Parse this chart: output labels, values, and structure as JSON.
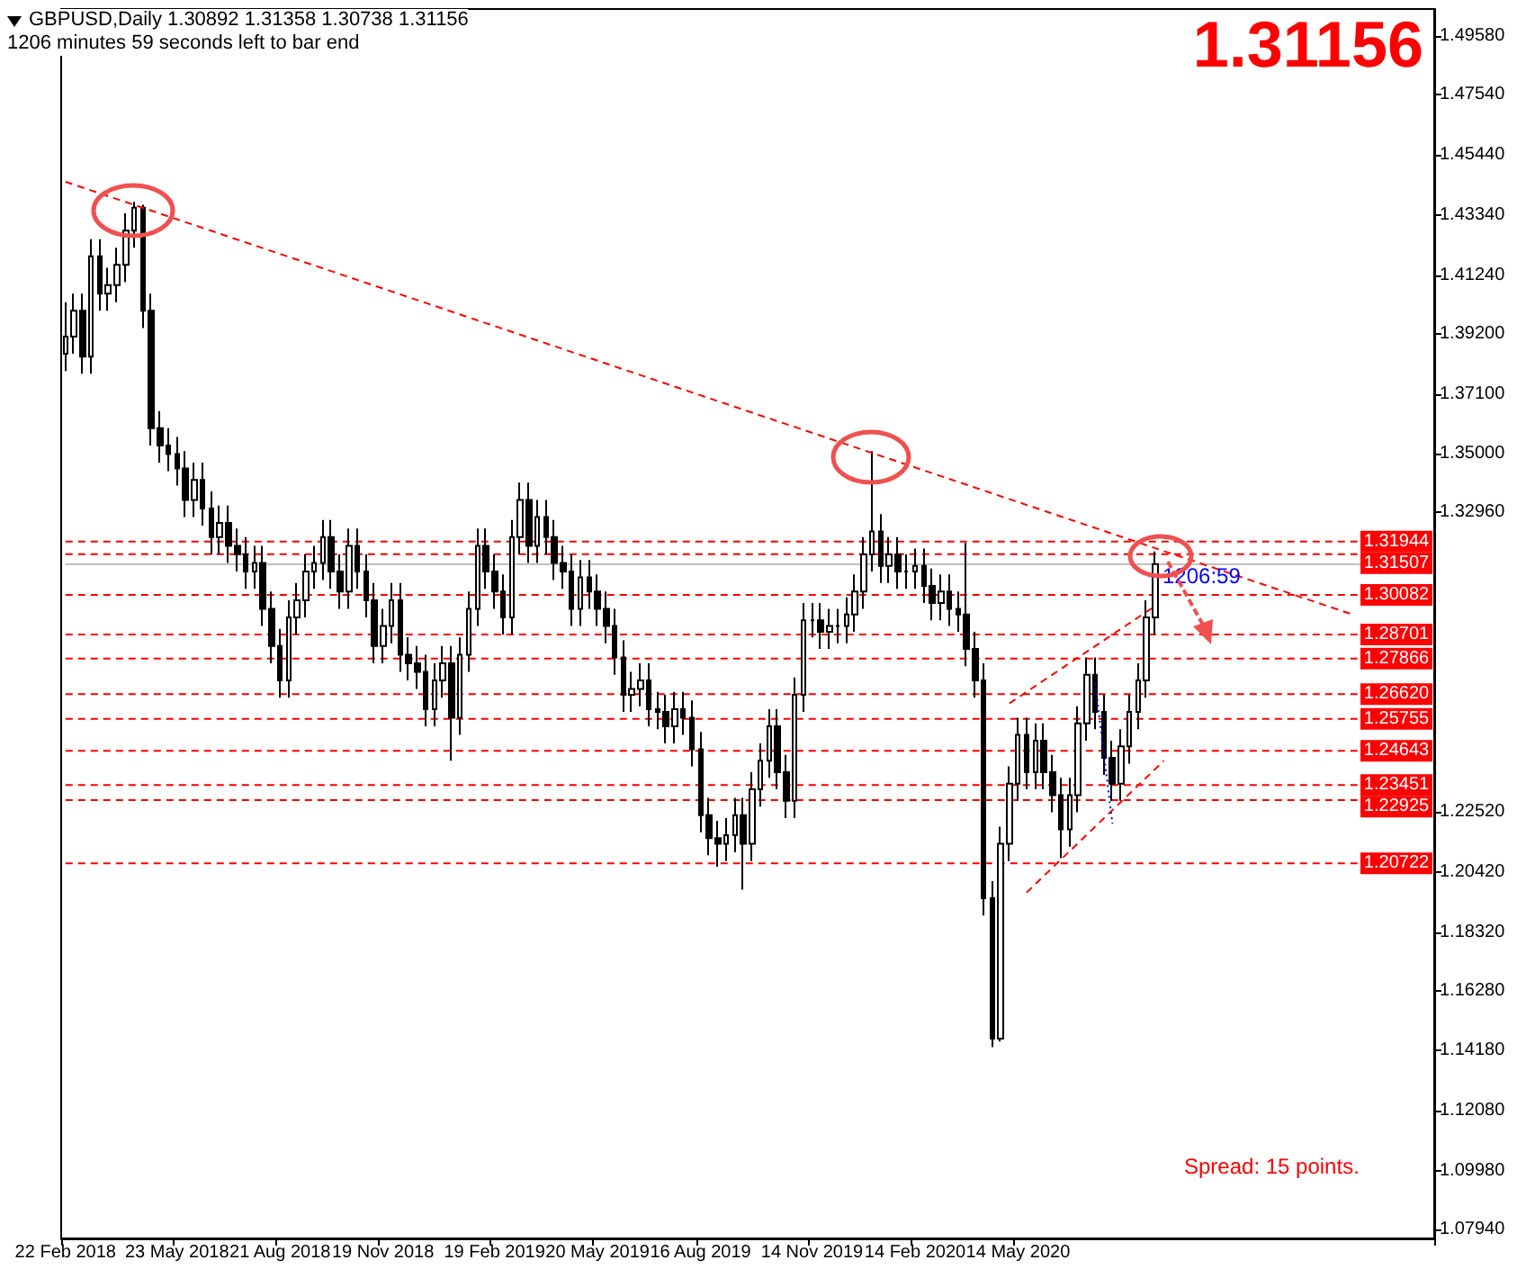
{
  "chart_data": {
    "type": "candlestick",
    "title": "GBPUSD,Daily  1.30892 1.31358 1.30738 1.31156",
    "subtitle": "1206 minutes 59 seconds left to bar end",
    "annotations": [
      "1.31156",
      "Spread: 15 points.",
      "1206:59"
    ],
    "categories": [
      "22 Feb 2018",
      null,
      null,
      null,
      null,
      null,
      null,
      null,
      null,
      null,
      null,
      null,
      null,
      "23 May 2018",
      null,
      null,
      null,
      null,
      null,
      null,
      null,
      null,
      null,
      null,
      null,
      "21 Aug 2018",
      null,
      null,
      null,
      null,
      null,
      null,
      null,
      null,
      null,
      null,
      null,
      "19 Nov 2018",
      null,
      null,
      null,
      null,
      null,
      null,
      null,
      null,
      null,
      null,
      null,
      null,
      "19 Feb 2019",
      null,
      null,
      null,
      null,
      null,
      null,
      null,
      null,
      null,
      null,
      null,
      "20 May 2019",
      null,
      null,
      null,
      null,
      null,
      null,
      null,
      null,
      null,
      null,
      null,
      "16 Aug 2019",
      null,
      null,
      null,
      null,
      null,
      null,
      null,
      null,
      null,
      null,
      null,
      null,
      "14 Nov 2019",
      null,
      null,
      null,
      null,
      null,
      null,
      null,
      null,
      null,
      null,
      null,
      "14 Feb 2020",
      null,
      null,
      null,
      null,
      null,
      null,
      null,
      null,
      null,
      null,
      null,
      "14 May 2020",
      null,
      null,
      null,
      null,
      null,
      null,
      null,
      null,
      null,
      null,
      null,
      null,
      null,
      null,
      null,
      null,
      null,
      null,
      null,
      null,
      null,
      null,
      null,
      null,
      null,
      null,
      null,
      null,
      null,
      null,
      null,
      null,
      null,
      null,
      null,
      null,
      null,
      null,
      null,
      null,
      null,
      null,
      null,
      null,
      null,
      null,
      null,
      null
    ],
    "color": "#000000",
    "ohlc": [
      [
        1.385,
        1.403,
        1.379,
        1.391
      ],
      [
        1.391,
        1.406,
        1.385,
        1.4
      ],
      [
        1.4,
        1.406,
        1.378,
        1.384
      ],
      [
        1.384,
        1.425,
        1.378,
        1.419
      ],
      [
        1.419,
        1.425,
        1.4,
        1.406
      ],
      [
        1.406,
        1.415,
        1.4,
        1.409
      ],
      [
        1.409,
        1.422,
        1.403,
        1.416
      ],
      [
        1.416,
        1.434,
        1.41,
        1.428
      ],
      [
        1.428,
        1.438,
        1.422,
        1.436
      ],
      [
        1.436,
        1.437,
        1.394,
        1.4
      ],
      [
        1.4,
        1.406,
        1.353,
        1.359
      ],
      [
        1.359,
        1.365,
        1.347,
        1.353
      ],
      [
        1.353,
        1.359,
        1.344,
        1.35
      ],
      [
        1.35,
        1.356,
        1.339,
        1.345
      ],
      [
        1.345,
        1.351,
        1.328,
        1.334
      ],
      [
        1.334,
        1.347,
        1.328,
        1.341
      ],
      [
        1.341,
        1.347,
        1.325,
        1.331
      ],
      [
        1.331,
        1.337,
        1.315,
        1.321
      ],
      [
        1.321,
        1.332,
        1.315,
        1.326
      ],
      [
        1.326,
        1.332,
        1.312,
        1.318
      ],
      [
        1.318,
        1.324,
        1.309,
        1.315
      ],
      [
        1.315,
        1.321,
        1.303,
        1.309
      ],
      [
        1.309,
        1.318,
        1.303,
        1.312
      ],
      [
        1.312,
        1.318,
        1.29,
        1.296
      ],
      [
        1.296,
        1.302,
        1.277,
        1.283
      ],
      [
        1.283,
        1.289,
        1.265,
        1.271
      ],
      [
        1.271,
        1.299,
        1.265,
        1.293
      ],
      [
        1.293,
        1.305,
        1.287,
        1.299
      ],
      [
        1.299,
        1.315,
        1.293,
        1.309
      ],
      [
        1.309,
        1.318,
        1.303,
        1.312
      ],
      [
        1.312,
        1.327,
        1.306,
        1.321
      ],
      [
        1.321,
        1.327,
        1.303,
        1.309
      ],
      [
        1.309,
        1.315,
        1.296,
        1.302
      ],
      [
        1.302,
        1.324,
        1.296,
        1.318
      ],
      [
        1.318,
        1.324,
        1.303,
        1.309
      ],
      [
        1.309,
        1.315,
        1.293,
        1.299
      ],
      [
        1.299,
        1.305,
        1.277,
        1.283
      ],
      [
        1.283,
        1.296,
        1.277,
        1.29
      ],
      [
        1.29,
        1.305,
        1.284,
        1.299
      ],
      [
        1.299,
        1.305,
        1.274,
        1.28
      ],
      [
        1.28,
        1.286,
        1.271,
        1.277
      ],
      [
        1.277,
        1.283,
        1.268,
        1.274
      ],
      [
        1.274,
        1.28,
        1.255,
        1.261
      ],
      [
        1.261,
        1.277,
        1.255,
        1.271
      ],
      [
        1.271,
        1.283,
        1.265,
        1.277
      ],
      [
        1.277,
        1.283,
        1.243,
        1.258
      ],
      [
        1.258,
        1.286,
        1.252,
        1.28
      ],
      [
        1.28,
        1.302,
        1.274,
        1.296
      ],
      [
        1.296,
        1.324,
        1.29,
        1.318
      ],
      [
        1.318,
        1.324,
        1.303,
        1.309
      ],
      [
        1.309,
        1.315,
        1.296,
        1.302
      ],
      [
        1.302,
        1.308,
        1.287,
        1.293
      ],
      [
        1.293,
        1.327,
        1.287,
        1.321
      ],
      [
        1.321,
        1.34,
        1.315,
        1.334
      ],
      [
        1.334,
        1.34,
        1.312,
        1.318
      ],
      [
        1.318,
        1.334,
        1.312,
        1.328
      ],
      [
        1.328,
        1.334,
        1.315,
        1.321
      ],
      [
        1.321,
        1.327,
        1.306,
        1.312
      ],
      [
        1.312,
        1.318,
        1.303,
        1.309
      ],
      [
        1.309,
        1.315,
        1.29,
        1.296
      ],
      [
        1.296,
        1.313,
        1.29,
        1.307
      ],
      [
        1.307,
        1.313,
        1.296,
        1.302
      ],
      [
        1.302,
        1.308,
        1.29,
        1.296
      ],
      [
        1.296,
        1.302,
        1.284,
        1.29
      ],
      [
        1.29,
        1.296,
        1.273,
        1.279
      ],
      [
        1.279,
        1.285,
        1.26,
        1.266
      ],
      [
        1.266,
        1.274,
        1.26,
        1.268
      ],
      [
        1.268,
        1.277,
        1.262,
        1.271
      ],
      [
        1.271,
        1.277,
        1.255,
        1.261
      ],
      [
        1.261,
        1.267,
        1.254,
        1.26
      ],
      [
        1.26,
        1.266,
        1.249,
        1.255
      ],
      [
        1.255,
        1.267,
        1.249,
        1.261
      ],
      [
        1.261,
        1.267,
        1.252,
        1.258
      ],
      [
        1.258,
        1.264,
        1.241,
        1.247
      ],
      [
        1.247,
        1.253,
        1.218,
        1.224
      ],
      [
        1.224,
        1.23,
        1.21,
        1.216
      ],
      [
        1.216,
        1.222,
        1.206,
        1.214
      ],
      [
        1.214,
        1.223,
        1.208,
        1.217
      ],
      [
        1.217,
        1.23,
        1.211,
        1.224
      ],
      [
        1.224,
        1.23,
        1.198,
        1.214
      ],
      [
        1.214,
        1.239,
        1.208,
        1.233
      ],
      [
        1.233,
        1.249,
        1.227,
        1.243
      ],
      [
        1.243,
        1.261,
        1.237,
        1.255
      ],
      [
        1.255,
        1.261,
        1.233,
        1.239
      ],
      [
        1.239,
        1.245,
        1.223,
        1.229
      ],
      [
        1.229,
        1.272,
        1.223,
        1.266
      ],
      [
        1.266,
        1.298,
        1.26,
        1.292
      ],
      [
        1.292,
        1.298,
        1.286,
        1.292
      ],
      [
        1.292,
        1.298,
        1.282,
        1.288
      ],
      [
        1.288,
        1.296,
        1.282,
        1.29
      ],
      [
        1.29,
        1.296,
        1.284,
        1.29
      ],
      [
        1.29,
        1.3,
        1.284,
        1.294
      ],
      [
        1.294,
        1.308,
        1.288,
        1.302
      ],
      [
        1.302,
        1.321,
        1.296,
        1.315
      ],
      [
        1.315,
        1.351,
        1.309,
        1.323
      ],
      [
        1.323,
        1.329,
        1.305,
        1.311
      ],
      [
        1.311,
        1.321,
        1.305,
        1.315
      ],
      [
        1.315,
        1.321,
        1.303,
        1.309
      ],
      [
        1.309,
        1.315,
        1.303,
        1.309
      ],
      [
        1.309,
        1.317,
        1.303,
        1.311
      ],
      [
        1.311,
        1.317,
        1.298,
        1.304
      ],
      [
        1.304,
        1.31,
        1.292,
        1.298
      ],
      [
        1.298,
        1.308,
        1.292,
        1.302
      ],
      [
        1.302,
        1.308,
        1.29,
        1.296
      ],
      [
        1.296,
        1.302,
        1.288,
        1.294
      ],
      [
        1.294,
        1.319,
        1.276,
        1.282
      ],
      [
        1.282,
        1.288,
        1.265,
        1.271
      ],
      [
        1.271,
        1.277,
        1.189,
        1.195
      ],
      [
        1.195,
        1.201,
        1.143,
        1.146
      ],
      [
        1.146,
        1.22,
        1.145,
        1.214
      ],
      [
        1.214,
        1.241,
        1.208,
        1.235
      ],
      [
        1.235,
        1.258,
        1.229,
        1.252
      ],
      [
        1.252,
        1.258,
        1.233,
        1.239
      ],
      [
        1.239,
        1.256,
        1.233,
        1.25
      ],
      [
        1.25,
        1.256,
        1.233,
        1.239
      ],
      [
        1.239,
        1.245,
        1.225,
        1.231
      ],
      [
        1.231,
        1.237,
        1.209,
        1.219
      ],
      [
        1.219,
        1.237,
        1.213,
        1.231
      ],
      [
        1.231,
        1.262,
        1.225,
        1.256
      ],
      [
        1.256,
        1.279,
        1.25,
        1.273
      ],
      [
        1.273,
        1.279,
        1.254,
        1.26
      ],
      [
        1.26,
        1.266,
        1.238,
        1.244
      ],
      [
        1.244,
        1.25,
        1.229,
        1.235
      ],
      [
        1.235,
        1.254,
        1.229,
        1.248
      ],
      [
        1.248,
        1.266,
        1.242,
        1.26
      ],
      [
        1.26,
        1.277,
        1.254,
        1.271
      ],
      [
        1.271,
        1.299,
        1.265,
        1.293
      ],
      [
        1.293,
        1.316,
        1.287,
        1.3116
      ],
      null,
      null,
      null,
      null,
      null,
      null,
      null,
      null,
      null,
      null,
      null,
      null,
      null,
      null,
      null,
      null,
      null,
      null,
      null,
      null,
      null,
      null,
      null,
      null,
      null,
      null,
      null,
      null,
      null,
      null,
      null,
      null
    ],
    "series": [
      {
        "type": "line",
        "color": "#ff0000",
        "line_style": "dashed",
        "values": [
          1.445,
          null,
          null,
          null,
          null,
          null,
          null,
          null,
          null,
          null,
          null,
          null,
          null,
          null,
          null,
          null,
          null,
          null,
          null,
          null,
          null,
          null,
          null,
          null,
          null,
          null,
          null,
          null,
          null,
          null,
          null,
          null,
          null,
          null,
          null,
          null,
          null,
          null,
          null,
          null,
          null,
          null,
          null,
          null,
          null,
          null,
          null,
          null,
          null,
          null,
          null,
          null,
          null,
          null,
          null,
          null,
          null,
          null,
          null,
          null,
          null,
          null,
          null,
          null,
          null,
          null,
          null,
          null,
          null,
          null,
          null,
          null,
          null,
          null,
          null,
          null,
          null,
          null,
          null,
          null,
          null,
          null,
          null,
          null,
          null,
          null,
          null,
          null,
          null,
          null,
          null,
          null,
          null,
          null,
          null,
          null,
          null,
          null,
          null,
          null,
          null,
          null,
          null,
          null,
          null,
          null,
          null,
          null,
          null,
          null,
          null,
          null,
          null,
          null,
          null,
          null,
          null,
          null,
          null,
          null,
          null,
          null,
          null,
          null,
          null,
          null,
          null,
          null,
          null,
          null,
          null,
          null,
          null,
          null,
          null,
          null,
          null,
          null,
          null,
          null,
          null,
          null,
          null,
          null,
          null,
          null,
          null,
          null,
          null,
          null,
          1.294,
          null,
          null,
          null,
          null,
          null,
          null,
          null,
          null,
          null
        ]
      },
      {
        "type": "line",
        "color": "#ff0000",
        "line_style": "dashed",
        "values": [
          null,
          null,
          null,
          null,
          null,
          null,
          null,
          null,
          null,
          null,
          null,
          null,
          null,
          null,
          null,
          null,
          null,
          null,
          null,
          null,
          null,
          null,
          null,
          null,
          null,
          null,
          null,
          null,
          null,
          null,
          null,
          null,
          null,
          null,
          null,
          null,
          null,
          null,
          null,
          null,
          null,
          null,
          null,
          null,
          null,
          null,
          null,
          null,
          null,
          null,
          null,
          null,
          null,
          null,
          null,
          null,
          null,
          null,
          null,
          null,
          null,
          null,
          null,
          null,
          null,
          null,
          null,
          null,
          null,
          null,
          null,
          null,
          null,
          null,
          null,
          null,
          null,
          null,
          null,
          null,
          null,
          null,
          null,
          null,
          null,
          null,
          null,
          null,
          null,
          null,
          null,
          null,
          null,
          null,
          null,
          null,
          null,
          null,
          null,
          null,
          null,
          null,
          null,
          null,
          null,
          null,
          null,
          null,
          null,
          null,
          1.263,
          null,
          null,
          null,
          null,
          null,
          null,
          null,
          null,
          null,
          null,
          null,
          null,
          null,
          null,
          null,
          null,
          1.297,
          null,
          null,
          null,
          null,
          null,
          null,
          null,
          null,
          null,
          null,
          null,
          null,
          null,
          null,
          null,
          null,
          null,
          null,
          null,
          null,
          null,
          null,
          null,
          null,
          null,
          null,
          null,
          null,
          null,
          null,
          null,
          null
        ]
      },
      {
        "type": "line",
        "color": "#ff0000",
        "line_style": "dashed",
        "values": [
          null,
          null,
          null,
          null,
          null,
          null,
          null,
          null,
          null,
          null,
          null,
          null,
          null,
          null,
          null,
          null,
          null,
          null,
          null,
          null,
          null,
          null,
          null,
          null,
          null,
          null,
          null,
          null,
          null,
          null,
          null,
          null,
          null,
          null,
          null,
          null,
          null,
          null,
          null,
          null,
          null,
          null,
          null,
          null,
          null,
          null,
          null,
          null,
          null,
          null,
          null,
          null,
          null,
          null,
          null,
          null,
          null,
          null,
          null,
          null,
          null,
          null,
          null,
          null,
          null,
          null,
          null,
          null,
          null,
          null,
          null,
          null,
          null,
          null,
          null,
          null,
          null,
          null,
          null,
          null,
          null,
          null,
          null,
          null,
          null,
          null,
          null,
          null,
          null,
          null,
          null,
          null,
          null,
          null,
          null,
          null,
          null,
          null,
          null,
          null,
          null,
          null,
          null,
          null,
          null,
          null,
          null,
          null,
          null,
          null,
          null,
          null,
          1.197,
          null,
          null,
          null,
          null,
          null,
          null,
          null,
          null,
          null,
          null,
          null,
          null,
          null,
          null,
          null,
          1.243,
          null,
          null,
          null,
          null,
          null,
          null,
          null,
          null,
          null,
          null,
          null,
          null,
          null,
          null,
          null,
          null,
          null,
          null,
          null,
          null,
          null,
          null,
          null,
          null,
          null,
          null,
          null,
          null,
          null,
          null,
          null
        ]
      },
      {
        "type": "line",
        "color": "#0000ff",
        "line_style": "dotted",
        "values": [
          null,
          null,
          null,
          null,
          null,
          null,
          null,
          null,
          null,
          null,
          null,
          null,
          null,
          null,
          null,
          null,
          null,
          null,
          null,
          null,
          null,
          null,
          null,
          null,
          null,
          null,
          null,
          null,
          null,
          null,
          null,
          null,
          null,
          null,
          null,
          null,
          null,
          null,
          null,
          null,
          null,
          null,
          null,
          null,
          null,
          null,
          null,
          null,
          null,
          null,
          null,
          null,
          null,
          null,
          null,
          null,
          null,
          null,
          null,
          null,
          null,
          null,
          null,
          null,
          null,
          null,
          null,
          null,
          null,
          null,
          null,
          null,
          null,
          null,
          null,
          null,
          null,
          null,
          null,
          null,
          null,
          null,
          null,
          null,
          null,
          null,
          null,
          null,
          null,
          null,
          null,
          null,
          null,
          null,
          null,
          null,
          null,
          null,
          null,
          null,
          null,
          null,
          null,
          null,
          null,
          null,
          null,
          null,
          null,
          null,
          null,
          null,
          null,
          null,
          null,
          null,
          null,
          null,
          null,
          null,
          1.27,
          null,
          1.221,
          null,
          null,
          null,
          null,
          null,
          null,
          null,
          null,
          null,
          null,
          null,
          null,
          null,
          null,
          null,
          null,
          null,
          null,
          null,
          null,
          null,
          null,
          null,
          null,
          null,
          null,
          null,
          null,
          null,
          null,
          null,
          null,
          null,
          null,
          null,
          null,
          null
        ]
      }
    ],
    "ylim": [
      1.0763,
      1.5053
    ],
    "yticks": [
      {
        "value": 1.4958,
        "label": "1.49580"
      },
      {
        "value": 1.4754,
        "label": "1.47540"
      },
      {
        "value": 1.4544,
        "label": "1.45440"
      },
      {
        "value": 1.4334,
        "label": "1.43340"
      },
      {
        "value": 1.4124,
        "label": "1.41240"
      },
      {
        "value": 1.392,
        "label": "1.39200"
      },
      {
        "value": 1.371,
        "label": "1.37100"
      },
      {
        "value": 1.35,
        "label": "1.35000"
      },
      {
        "value": 1.3296,
        "label": "1.32960"
      },
      {
        "value": 1.2252,
        "label": "1.22520"
      },
      {
        "value": 1.2042,
        "label": "1.20420"
      },
      {
        "value": 1.1832,
        "label": "1.18320"
      },
      {
        "value": 1.1628,
        "label": "1.16280"
      },
      {
        "value": 1.1418,
        "label": "1.14180"
      },
      {
        "value": 1.1208,
        "label": "1.12080"
      },
      {
        "value": 1.0998,
        "label": "1.09980"
      },
      {
        "value": 1.0794,
        "label": "1.07940"
      }
    ],
    "ref_lines": [
      {
        "axis": "y",
        "value": 1.31156,
        "color": "#c0c0c0",
        "line_style": "solid"
      },
      {
        "axis": "y",
        "value": 1.31944,
        "label": "1.31944",
        "color": "#ff0000",
        "line_style": "dashed"
      },
      {
        "axis": "y",
        "value": 1.31507,
        "label": "1.31507",
        "color": "#ff0000",
        "line_style": "dashed"
      },
      {
        "axis": "y",
        "value": 1.30082,
        "label": "1.30082",
        "color": "#ff0000",
        "line_style": "dashed"
      },
      {
        "axis": "y",
        "value": 1.28701,
        "label": "1.28701",
        "color": "#ff0000",
        "line_style": "dashed"
      },
      {
        "axis": "y",
        "value": 1.27866,
        "label": "1.27866",
        "color": "#ff0000",
        "line_style": "dashed"
      },
      {
        "axis": "y",
        "value": 1.2662,
        "label": "1.26620",
        "color": "#ff0000",
        "line_style": "dashed"
      },
      {
        "axis": "y",
        "value": 1.25755,
        "label": "1.25755",
        "color": "#ff0000",
        "line_style": "dashed"
      },
      {
        "axis": "y",
        "value": 1.24643,
        "label": "1.24643",
        "color": "#ff0000",
        "line_style": "dashed"
      },
      {
        "axis": "y",
        "value": 1.23451,
        "label": "1.23451",
        "color": "#ff0000",
        "line_style": "dashed"
      },
      {
        "axis": "y",
        "value": 1.22925,
        "label": "1.22925",
        "color": "#ff0000",
        "line_style": "dashed"
      },
      {
        "axis": "y",
        "value": 1.20722,
        "label": "1.20722",
        "color": "#ff0000",
        "line_style": "dashed"
      }
    ],
    "grid": false,
    "marker": "none"
  }
}
